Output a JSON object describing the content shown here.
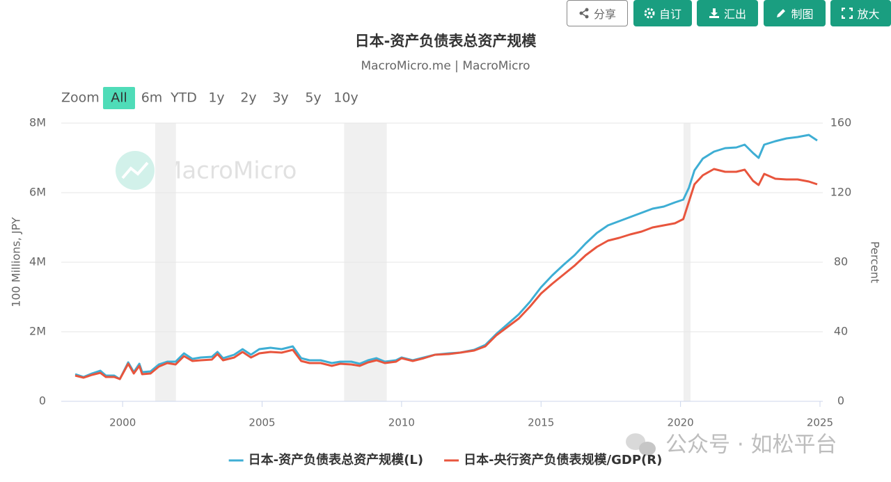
{
  "toolbar": {
    "buttons": [
      "分享",
      "自订",
      "汇出",
      "制图",
      "放大"
    ]
  },
  "zoom": {
    "label": "Zoom",
    "options": [
      "All",
      "6m",
      "YTD",
      "1y",
      "2y",
      "3y",
      "5y",
      "10y"
    ],
    "selected": 0
  },
  "overlay_text": "公众号 · 如松平台",
  "chart_data": {
    "type": "line",
    "title": "日本-资产负债表总资产规模",
    "subtitle": "MacroMicro.me | MacroMicro",
    "watermark": "MacroMicro",
    "ylabel": "100 Millions, JPY",
    "y2label": "Percent",
    "grid": true,
    "legend": "bottom",
    "shade_color": "#f0f0f0",
    "shaded_ranges": [
      [
        2001.17,
        2001.91
      ],
      [
        2007.94,
        2009.47
      ],
      [
        2020.11,
        2020.36
      ]
    ],
    "xlim": [
      1997.8,
      2025.1
    ],
    "xticks": [
      2000,
      2005,
      2010,
      2015,
      2020,
      2025
    ],
    "ylim": [
      0,
      8000000
    ],
    "yticks": [
      0,
      {
        "value": 2000000,
        "label": "2M"
      },
      {
        "value": 4000000,
        "label": "4M"
      },
      {
        "value": 6000000,
        "label": "6M"
      },
      {
        "value": 8000000,
        "label": "8M"
      }
    ],
    "y2lim": [
      0,
      160
    ],
    "y2ticks": [
      0,
      40,
      80,
      120,
      160
    ],
    "x": [
      1998.3,
      1998.6,
      1998.9,
      1999.2,
      1999.4,
      1999.7,
      1999.9,
      2000.2,
      2000.4,
      2000.6,
      2000.7,
      2001.0,
      2001.3,
      2001.6,
      2001.9,
      2002.2,
      2002.5,
      2002.8,
      2003.2,
      2003.4,
      2003.6,
      2004.0,
      2004.3,
      2004.6,
      2004.9,
      2005.3,
      2005.7,
      2006.1,
      2006.4,
      2006.7,
      2007.1,
      2007.5,
      2007.8,
      2008.2,
      2008.5,
      2008.8,
      2009.1,
      2009.4,
      2009.8,
      2010.0,
      2010.4,
      2010.8,
      2011.2,
      2011.7,
      2012.1,
      2012.6,
      2013.0,
      2013.4,
      2013.8,
      2014.2,
      2014.6,
      2015.0,
      2015.4,
      2015.8,
      2016.2,
      2016.6,
      2017.0,
      2017.4,
      2017.8,
      2018.2,
      2018.6,
      2019.0,
      2019.4,
      2019.8,
      2020.1,
      2020.3,
      2020.5,
      2020.8,
      2021.2,
      2021.6,
      2022.0,
      2022.3,
      2022.6,
      2022.8,
      2023.0,
      2023.4,
      2023.8,
      2024.2,
      2024.6,
      2024.9
    ],
    "series": [
      {
        "name": "日本-资产负债表总资产规模(L)",
        "color": "#3eaed4",
        "axis": "y",
        "values": [
          780000,
          700000,
          800000,
          880000,
          740000,
          740000,
          640000,
          1120000,
          840000,
          1080000,
          840000,
          860000,
          1060000,
          1140000,
          1140000,
          1380000,
          1220000,
          1260000,
          1280000,
          1420000,
          1240000,
          1340000,
          1500000,
          1340000,
          1500000,
          1540000,
          1500000,
          1580000,
          1240000,
          1180000,
          1180000,
          1100000,
          1140000,
          1140000,
          1080000,
          1180000,
          1240000,
          1140000,
          1180000,
          1260000,
          1180000,
          1260000,
          1340000,
          1380000,
          1400000,
          1480000,
          1620000,
          1940000,
          2220000,
          2500000,
          2860000,
          3280000,
          3620000,
          3920000,
          4200000,
          4540000,
          4840000,
          5060000,
          5180000,
          5300000,
          5420000,
          5540000,
          5600000,
          5720000,
          5800000,
          6140000,
          6640000,
          6980000,
          7180000,
          7280000,
          7300000,
          7380000,
          7140000,
          7000000,
          7380000,
          7480000,
          7560000,
          7600000,
          7660000,
          7500000
        ]
      },
      {
        "name": "日本-央行资产负债表规模/GDP(R)",
        "color": "#e8553d",
        "axis": "y2",
        "values": [
          14.8,
          13.6,
          15.2,
          16.4,
          14,
          14,
          12.8,
          21.6,
          16,
          20.4,
          15.6,
          16,
          20,
          22,
          21.2,
          26,
          23.2,
          23.6,
          24,
          27.2,
          23.6,
          25.2,
          28.4,
          25.2,
          27.6,
          28.4,
          28,
          29.6,
          23.2,
          22,
          22,
          20.4,
          21.6,
          21.2,
          20.4,
          22.4,
          23.6,
          22,
          22.8,
          24.8,
          23.2,
          24.8,
          26.8,
          27.2,
          28,
          29.2,
          31.6,
          38,
          42.8,
          47.6,
          54.4,
          62,
          67.6,
          72.8,
          78,
          84,
          88.8,
          92.4,
          94,
          96,
          97.6,
          100,
          101.2,
          102.4,
          104.8,
          114.8,
          124.8,
          130,
          133.6,
          132,
          132,
          133.2,
          126.8,
          124.4,
          130.8,
          128,
          127.6,
          127.6,
          126.4,
          124.8
        ]
      }
    ]
  }
}
